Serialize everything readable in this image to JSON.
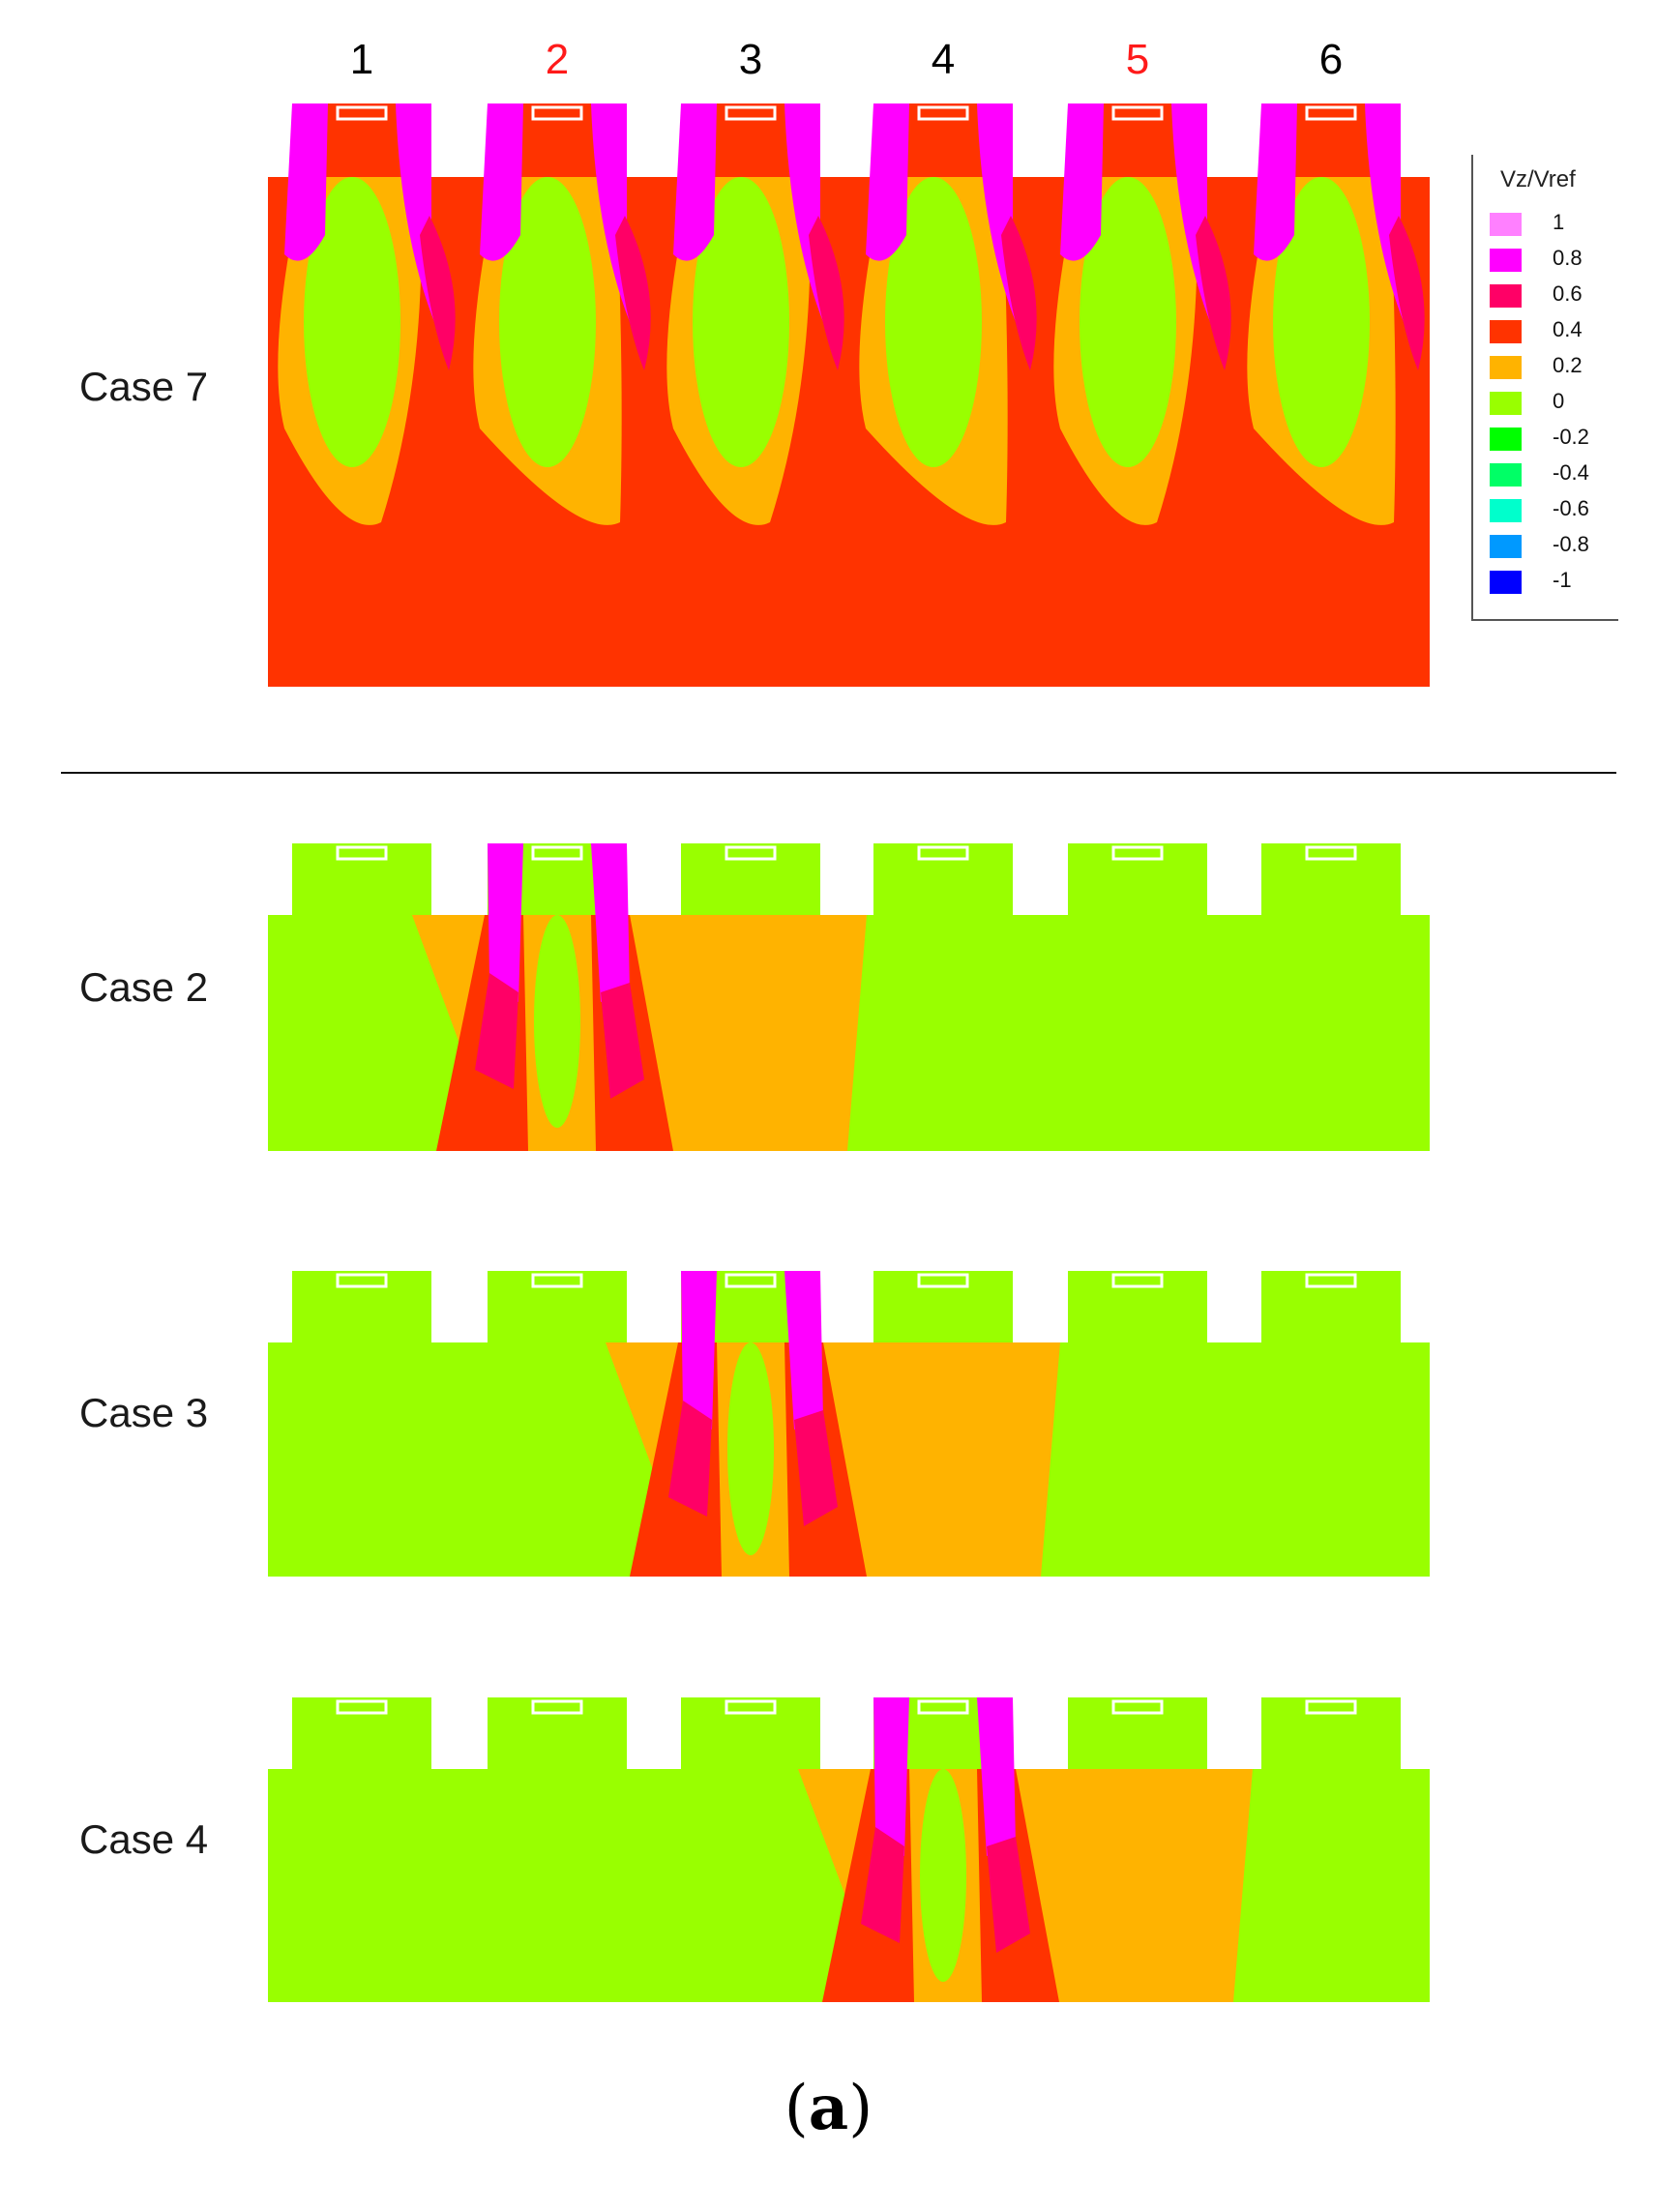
{
  "column_labels": [
    {
      "text": "1",
      "color": "#000000"
    },
    {
      "text": "2",
      "color": "#ff1a1a"
    },
    {
      "text": "3",
      "color": "#000000"
    },
    {
      "text": "4",
      "color": "#000000"
    },
    {
      "text": "5",
      "color": "#ff1a1a"
    },
    {
      "text": "6",
      "color": "#000000"
    }
  ],
  "cases": [
    {
      "label": "Case 7",
      "active_jets": [
        1,
        2,
        3,
        4,
        5,
        6
      ],
      "background_field_value": 0.4
    },
    {
      "label": "Case 2",
      "active_jets": [
        2
      ],
      "background_field_value": 0
    },
    {
      "label": "Case 3",
      "active_jets": [
        3
      ],
      "background_field_value": 0
    },
    {
      "label": "Case 4",
      "active_jets": [
        4
      ],
      "background_field_value": 0
    }
  ],
  "legend": {
    "title": "Vz/Vref",
    "levels": [
      {
        "label": "1",
        "color": "#ff80ff"
      },
      {
        "label": "0.8",
        "color": "#ff00ff"
      },
      {
        "label": "0.6",
        "color": "#ff0066"
      },
      {
        "label": "0.4",
        "color": "#ff3300"
      },
      {
        "label": "0.2",
        "color": "#ffb300"
      },
      {
        "label": "0",
        "color": "#99ff00"
      },
      {
        "label": "-0.2",
        "color": "#00ff00"
      },
      {
        "label": "-0.4",
        "color": "#00ff66"
      },
      {
        "label": "-0.6",
        "color": "#00ffcc"
      },
      {
        "label": "-0.8",
        "color": "#0099ff"
      },
      {
        "label": "-1",
        "color": "#0000ff"
      }
    ]
  },
  "caption": {
    "open": "(",
    "letter": "a",
    "close": ")"
  }
}
